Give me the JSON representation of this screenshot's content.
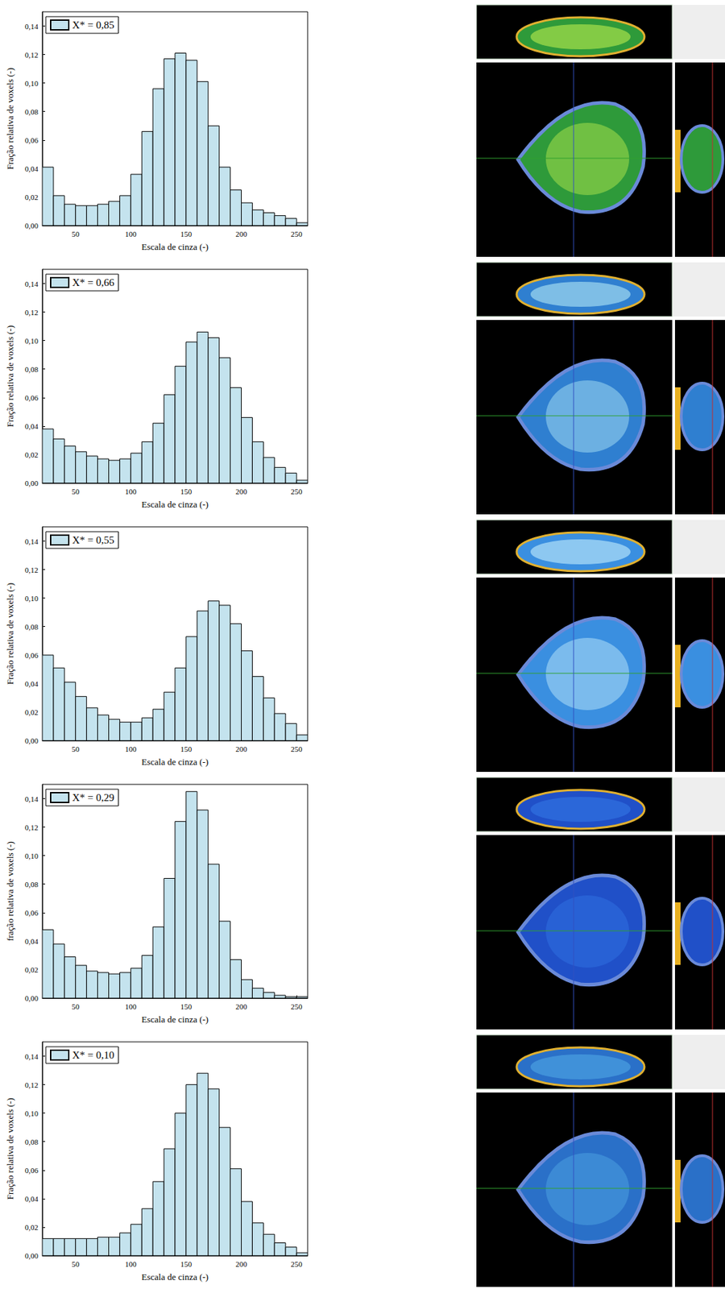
{
  "chart_data": [
    {
      "type": "histogram",
      "x_label": "Escala de cinza (-)",
      "y_label": "Fração relativa de voxels (-)",
      "bins": [
        20,
        30,
        40,
        50,
        60,
        70,
        80,
        90,
        100,
        110,
        120,
        130,
        140,
        150,
        160,
        170,
        180,
        190,
        200,
        210,
        220,
        230,
        240,
        250,
        260
      ],
      "series": [
        {
          "name": "X* = 0,85",
          "color": "#c4e3ee",
          "values": [
            0.041,
            0.021,
            0.015,
            0.014,
            0.014,
            0.015,
            0.017,
            0.021,
            0.036,
            0.066,
            0.096,
            0.117,
            0.121,
            0.116,
            0.101,
            0.07,
            0.041,
            0.025,
            0.016,
            0.011,
            0.009,
            0.007,
            0.005,
            0.002
          ]
        }
      ],
      "xlim": [
        20,
        260
      ],
      "xticks": [
        50,
        100,
        150,
        200,
        250
      ],
      "ylim": [
        0,
        0.15
      ],
      "yticks": [
        {
          "value": 0,
          "label": "0,00"
        },
        {
          "value": 0.02,
          "label": "0,02"
        },
        {
          "value": 0.04,
          "label": "0,04"
        },
        {
          "value": 0.06,
          "label": "0,06"
        },
        {
          "value": 0.08,
          "label": "0,08"
        },
        {
          "value": 0.1,
          "label": "0,10"
        },
        {
          "value": 0.12,
          "label": "0,12"
        },
        {
          "value": 0.14,
          "label": "0,14"
        }
      ],
      "grid": false,
      "legend": "top-left"
    },
    {
      "type": "histogram",
      "x_label": "Escala de cinza (-)",
      "y_label": "Fração relativa de voxels (-)",
      "bins": [
        20,
        30,
        40,
        50,
        60,
        70,
        80,
        90,
        100,
        110,
        120,
        130,
        140,
        150,
        160,
        170,
        180,
        190,
        200,
        210,
        220,
        230,
        240,
        250,
        260
      ],
      "series": [
        {
          "name": "X* = 0,66",
          "color": "#c4e3ee",
          "values": [
            0.038,
            0.031,
            0.026,
            0.022,
            0.019,
            0.017,
            0.016,
            0.017,
            0.021,
            0.029,
            0.042,
            0.062,
            0.082,
            0.099,
            0.106,
            0.102,
            0.088,
            0.067,
            0.046,
            0.029,
            0.018,
            0.011,
            0.007,
            0.002
          ]
        }
      ],
      "xlim": [
        20,
        260
      ],
      "xticks": [
        50,
        100,
        150,
        200,
        250
      ],
      "ylim": [
        0,
        0.15
      ],
      "yticks": [
        {
          "value": 0,
          "label": "0,00"
        },
        {
          "value": 0.02,
          "label": "0,02"
        },
        {
          "value": 0.04,
          "label": "0,04"
        },
        {
          "value": 0.06,
          "label": "0,06"
        },
        {
          "value": 0.08,
          "label": "0,08"
        },
        {
          "value": 0.1,
          "label": "0,10"
        },
        {
          "value": 0.12,
          "label": "0,12"
        },
        {
          "value": 0.14,
          "label": "0,14"
        }
      ],
      "grid": false,
      "legend": "top-left"
    },
    {
      "type": "histogram",
      "x_label": "Escala de cinza (-)",
      "y_label": "Fração relativa de voxels (-)",
      "bins": [
        20,
        30,
        40,
        50,
        60,
        70,
        80,
        90,
        100,
        110,
        120,
        130,
        140,
        150,
        160,
        170,
        180,
        190,
        200,
        210,
        220,
        230,
        240,
        250,
        260
      ],
      "series": [
        {
          "name": "X* = 0,55",
          "color": "#c4e3ee",
          "values": [
            0.06,
            0.051,
            0.041,
            0.031,
            0.023,
            0.018,
            0.015,
            0.013,
            0.013,
            0.016,
            0.022,
            0.034,
            0.051,
            0.073,
            0.091,
            0.098,
            0.095,
            0.082,
            0.063,
            0.045,
            0.03,
            0.019,
            0.012,
            0.004
          ]
        }
      ],
      "xlim": [
        20,
        260
      ],
      "xticks": [
        50,
        100,
        150,
        200,
        250
      ],
      "ylim": [
        0,
        0.15
      ],
      "yticks": [
        {
          "value": 0,
          "label": "0,00"
        },
        {
          "value": 0.02,
          "label": "0,02"
        },
        {
          "value": 0.04,
          "label": "0,04"
        },
        {
          "value": 0.06,
          "label": "0,06"
        },
        {
          "value": 0.08,
          "label": "0,08"
        },
        {
          "value": 0.1,
          "label": "0,10"
        },
        {
          "value": 0.12,
          "label": "0,12"
        },
        {
          "value": 0.14,
          "label": "0,14"
        }
      ],
      "grid": false,
      "legend": "top-left"
    },
    {
      "type": "histogram",
      "x_label": "Escala de cinza (-)",
      "y_label": "fração relativa de voxels (-)",
      "bins": [
        20,
        30,
        40,
        50,
        60,
        70,
        80,
        90,
        100,
        110,
        120,
        130,
        140,
        150,
        160,
        170,
        180,
        190,
        200,
        210,
        220,
        230,
        240,
        250,
        260
      ],
      "series": [
        {
          "name": "X* = 0,29",
          "color": "#c4e3ee",
          "values": [
            0.048,
            0.038,
            0.029,
            0.023,
            0.019,
            0.018,
            0.017,
            0.018,
            0.021,
            0.03,
            0.05,
            0.084,
            0.124,
            0.145,
            0.132,
            0.094,
            0.054,
            0.027,
            0.013,
            0.007,
            0.004,
            0.002,
            0.001,
            0.001
          ]
        }
      ],
      "xlim": [
        20,
        260
      ],
      "xticks": [
        50,
        100,
        150,
        200,
        250
      ],
      "ylim": [
        0,
        0.15
      ],
      "yticks": [
        {
          "value": 0,
          "label": "0,00"
        },
        {
          "value": 0.02,
          "label": "0,02"
        },
        {
          "value": 0.04,
          "label": "0,04"
        },
        {
          "value": 0.06,
          "label": "0,06"
        },
        {
          "value": 0.08,
          "label": "0,08"
        },
        {
          "value": 0.1,
          "label": "0,10"
        },
        {
          "value": 0.12,
          "label": "0,12"
        },
        {
          "value": 0.14,
          "label": "0,14"
        }
      ],
      "grid": false,
      "legend": "top-left"
    },
    {
      "type": "histogram",
      "x_label": "Escala de cinza (-)",
      "y_label": "Fração relativa de voxels (-)",
      "bins": [
        20,
        30,
        40,
        50,
        60,
        70,
        80,
        90,
        100,
        110,
        120,
        130,
        140,
        150,
        160,
        170,
        180,
        190,
        200,
        210,
        220,
        230,
        240,
        250,
        260
      ],
      "series": [
        {
          "name": "X* = 0,10",
          "color": "#c4e3ee",
          "values": [
            0.012,
            0.012,
            0.012,
            0.012,
            0.012,
            0.013,
            0.013,
            0.016,
            0.022,
            0.033,
            0.052,
            0.075,
            0.1,
            0.12,
            0.128,
            0.117,
            0.09,
            0.061,
            0.038,
            0.023,
            0.015,
            0.009,
            0.006,
            0.002
          ]
        }
      ],
      "xlim": [
        20,
        260
      ],
      "xticks": [
        50,
        100,
        150,
        200,
        250
      ],
      "ylim": [
        0,
        0.15
      ],
      "yticks": [
        {
          "value": 0,
          "label": "0,00"
        },
        {
          "value": 0.02,
          "label": "0,02"
        },
        {
          "value": 0.04,
          "label": "0,04"
        },
        {
          "value": 0.06,
          "label": "0,06"
        },
        {
          "value": 0.08,
          "label": "0,08"
        },
        {
          "value": 0.1,
          "label": "0,10"
        },
        {
          "value": 0.12,
          "label": "0,12"
        },
        {
          "value": 0.14,
          "label": "0,14"
        }
      ],
      "grid": false,
      "legend": "top-left"
    }
  ]
}
